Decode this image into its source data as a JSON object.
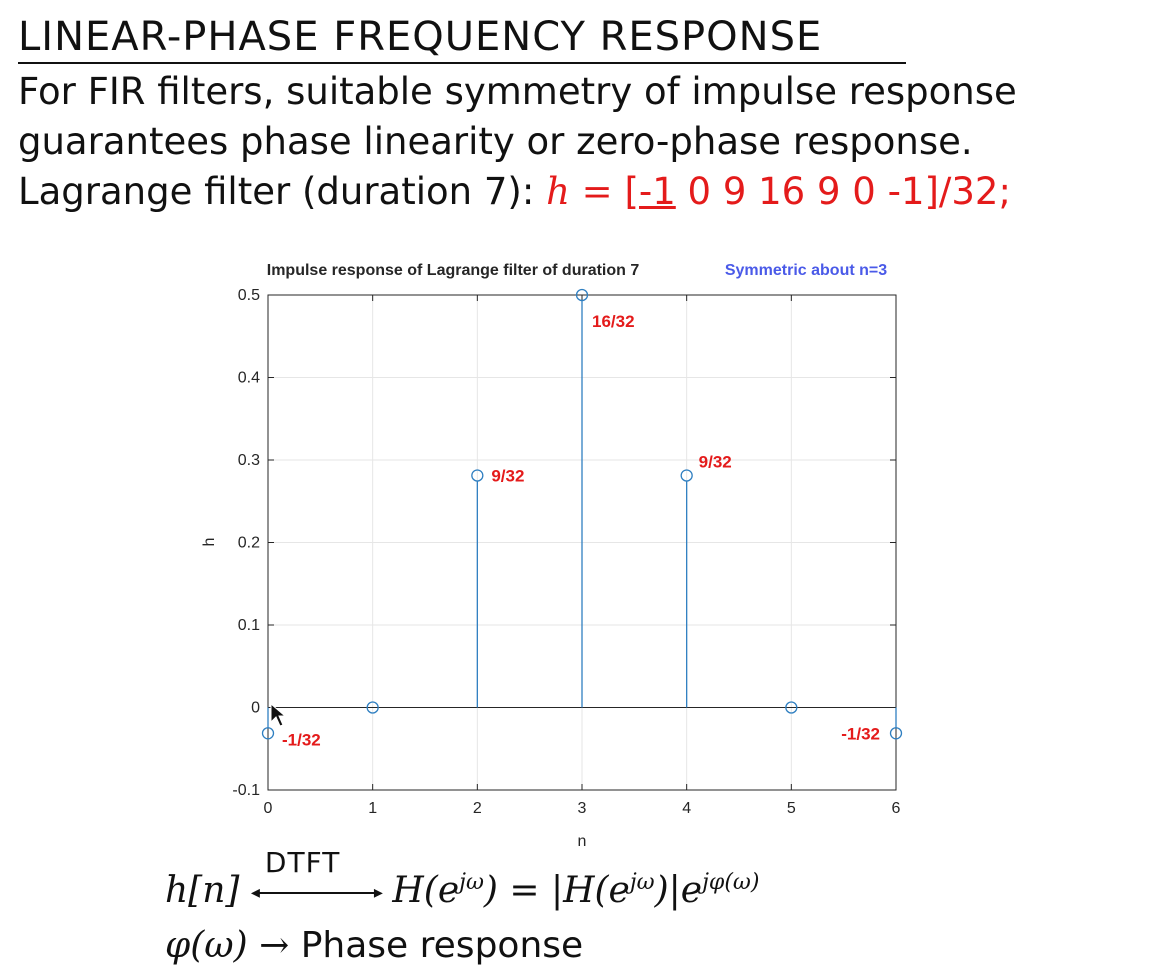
{
  "slide": {
    "title": "LINEAR-PHASE FREQUENCY RESPONSE",
    "line1": "For FIR filters, suitable symmetry of impulse response",
    "line2": "guarantees phase linearity or zero-phase response.",
    "line3_prefix": "Lagrange filter (duration 7):",
    "h_symbol": "h",
    "eq_sign": "=",
    "h_first": "[-1",
    "h_rest": " 0 9 16 9 0 -1]/32;"
  },
  "formulas": {
    "lhs": "h[n]",
    "dtft_label": "DTFT",
    "rhs_part1": "H(e",
    "rhs_sup1": "jω",
    "rhs_part2": ") = |H(e",
    "rhs_sup2": "jω",
    "rhs_part3": ")|e",
    "rhs_sup3": "jφ(ω)",
    "phi_lhs": "φ(ω) →",
    "phi_text": "Phase response"
  },
  "colors": {
    "stem": "#2f7fc1",
    "annotation": "#e41b1b",
    "note": "#4a5ae8",
    "grid": "#e6e6e6",
    "axis": "#262626"
  },
  "chart_data": {
    "type": "stem",
    "title": "Impulse response of Lagrange filter of duration 7",
    "note": "Symmetric about n=3",
    "xlabel": "n",
    "ylabel": "h",
    "xlim": [
      0,
      6
    ],
    "ylim": [
      -0.1,
      0.5
    ],
    "xticks": [
      0,
      1,
      2,
      3,
      4,
      5,
      6
    ],
    "yticks": [
      -0.1,
      0,
      0.1,
      0.2,
      0.3,
      0.4,
      0.5
    ],
    "grid": true,
    "x": [
      0,
      1,
      2,
      3,
      4,
      5,
      6
    ],
    "values": [
      -0.03125,
      0,
      0.28125,
      0.5,
      0.28125,
      0,
      -0.03125
    ],
    "annotations": [
      {
        "x": 0,
        "y": -0.03125,
        "text": "-1/32",
        "anchor": "right-of"
      },
      {
        "x": 2,
        "y": 0.28125,
        "text": "9/32",
        "anchor": "right-of"
      },
      {
        "x": 3,
        "y": 0.5,
        "text": "16/32",
        "anchor": "below-right"
      },
      {
        "x": 4,
        "y": 0.28125,
        "text": "9/32",
        "anchor": "above-right"
      },
      {
        "x": 6,
        "y": -0.03125,
        "text": "-1/32",
        "anchor": "left-of"
      }
    ]
  }
}
